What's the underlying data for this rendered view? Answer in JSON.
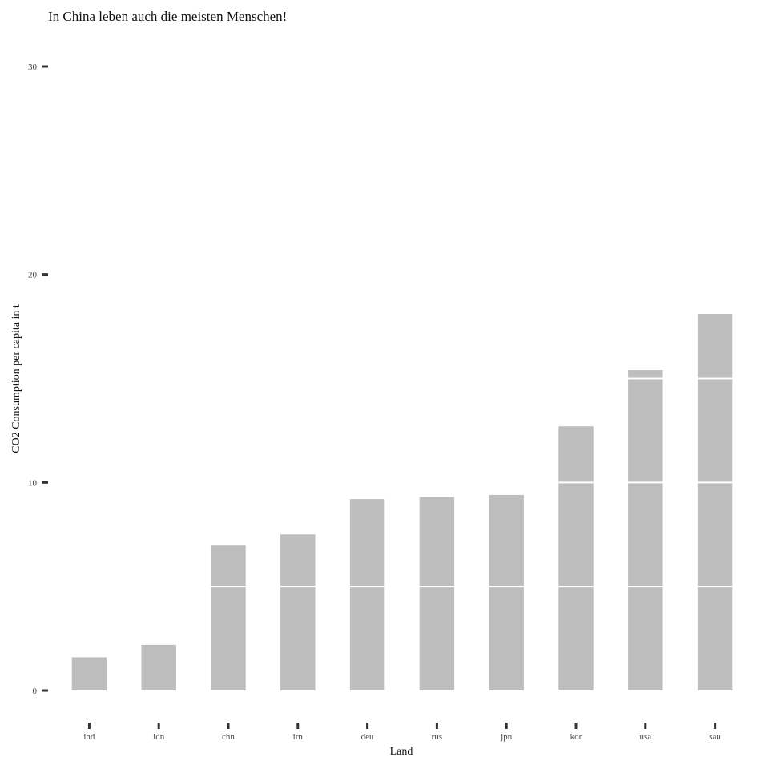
{
  "chart_data": {
    "type": "bar",
    "title": "In China leben auch die meisten Menschen!",
    "xlabel": "Land",
    "ylabel": "CO2 Consumption per capita in t",
    "categories": [
      "ind",
      "idn",
      "chn",
      "irn",
      "deu",
      "rus",
      "jpn",
      "kor",
      "usa",
      "sau"
    ],
    "values": [
      1.6,
      2.2,
      7.0,
      7.5,
      9.2,
      9.3,
      9.4,
      12.7,
      15.4,
      18.1
    ],
    "ylim": [
      0,
      30
    ],
    "yticks": [
      0,
      10,
      20,
      30
    ],
    "segment_size": 5,
    "bar_color": "#bdbdbd",
    "grid": false
  }
}
